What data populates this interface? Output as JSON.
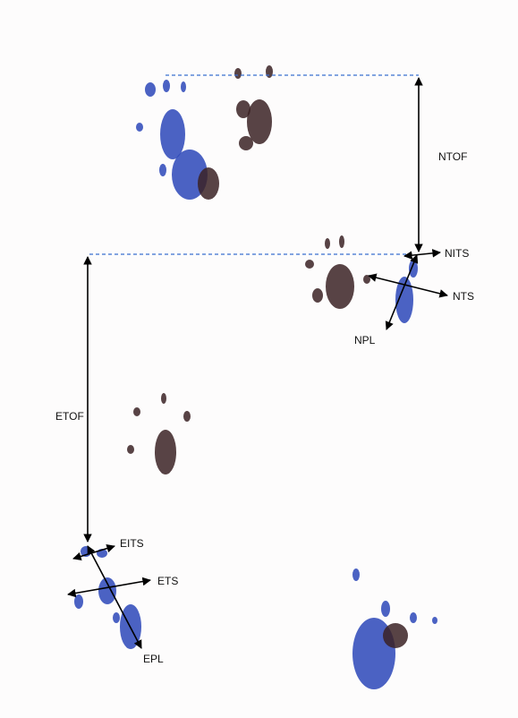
{
  "labels": [
    "NTOF",
    "NITS",
    "NTS",
    "NPL",
    "ETOF",
    "EITS",
    "ETS",
    "EPL"
  ]
}
